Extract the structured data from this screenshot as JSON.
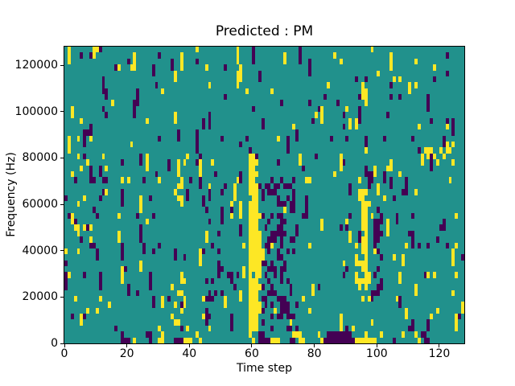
{
  "figure": {
    "title": "Predicted : PM",
    "xlabel": "Time step",
    "ylabel": "Frequency (Hz)"
  },
  "chart_data": {
    "type": "heatmap",
    "title": "Predicted : PM",
    "xlabel": "Time step",
    "ylabel": "Frequency (Hz)",
    "x_range": [
      0,
      128
    ],
    "y_range": [
      0,
      128000
    ],
    "x_ticks": [
      0,
      20,
      40,
      60,
      80,
      100,
      120
    ],
    "y_ticks": [
      0,
      20000,
      40000,
      60000,
      80000,
      100000,
      120000
    ],
    "grid_cols": 128,
    "grid_rows": 50,
    "colormap": "viridis",
    "value_colors": {
      "0": "#440154",
      "1": "#21918c",
      "2": "#fde725"
    },
    "background_value": 1,
    "legend": "none",
    "grid_lines": false,
    "noise": {
      "seed": 1337,
      "p_purple": 0.03,
      "p_yellow": 0.027,
      "p_extend": 0.35
    },
    "features": [
      {
        "label": "main yellow vertical streak",
        "value": 2,
        "col_start": 59,
        "col_end": 61,
        "freq_start": 4000,
        "freq_end": 80000,
        "density": 0.97
      },
      {
        "label": "main streak widening",
        "value": 2,
        "col_start": 62,
        "col_end": 62,
        "freq_start": 14000,
        "freq_end": 54000,
        "density": 0.85
      },
      {
        "label": "central purple cluster",
        "value": 0,
        "col_start": 63,
        "col_end": 74,
        "freq_start": 5000,
        "freq_end": 70000,
        "density": 0.22
      },
      {
        "label": "central purple dense column",
        "value": 0,
        "col_start": 68,
        "col_end": 70,
        "freq_start": 20000,
        "freq_end": 60000,
        "density": 0.3
      },
      {
        "label": "right yellow streak",
        "value": 2,
        "col_start": 95,
        "col_end": 96,
        "freq_start": 26000,
        "freq_end": 62000,
        "density": 0.88
      },
      {
        "label": "right yellow scatter",
        "value": 2,
        "col_start": 93,
        "col_end": 97,
        "freq_start": 6000,
        "freq_end": 70000,
        "density": 0.15
      },
      {
        "label": "right purple streak",
        "value": 0,
        "col_start": 99,
        "col_end": 101,
        "freq_start": 22000,
        "freq_end": 58000,
        "density": 0.4
      },
      {
        "label": "yellow cluster low-mid",
        "value": 2,
        "col_start": 34,
        "col_end": 38,
        "freq_start": 8000,
        "freq_end": 26000,
        "density": 0.2
      },
      {
        "label": "yellow cluster upper-mid",
        "value": 2,
        "col_start": 35,
        "col_end": 38,
        "freq_start": 60000,
        "freq_end": 78000,
        "density": 0.22
      },
      {
        "label": "purple scatter mid",
        "value": 0,
        "col_start": 44,
        "col_end": 58,
        "freq_start": 18000,
        "freq_end": 60000,
        "density": 0.07
      },
      {
        "label": "left scatter purple",
        "value": 0,
        "col_start": 0,
        "col_end": 12,
        "freq_start": 18000,
        "freq_end": 92000,
        "density": 0.05
      },
      {
        "label": "left scatter yellow",
        "value": 2,
        "col_start": 0,
        "col_end": 12,
        "freq_start": 14000,
        "freq_end": 92000,
        "density": 0.045
      },
      {
        "label": "right-edge yellow band",
        "value": 2,
        "col_start": 115,
        "col_end": 127,
        "freq_start": 78000,
        "freq_end": 86000,
        "density": 0.22
      }
    ],
    "bottom_rows": [
      "11111111111111111100012111101122111000222112111111111111111121000022211100122111112000000000022222221111101111111210011111111111",
      "11111111111111111101111111001112111111111121111111111111111211001111111112221111121100000000111121111211111121112100111111111111"
    ]
  }
}
